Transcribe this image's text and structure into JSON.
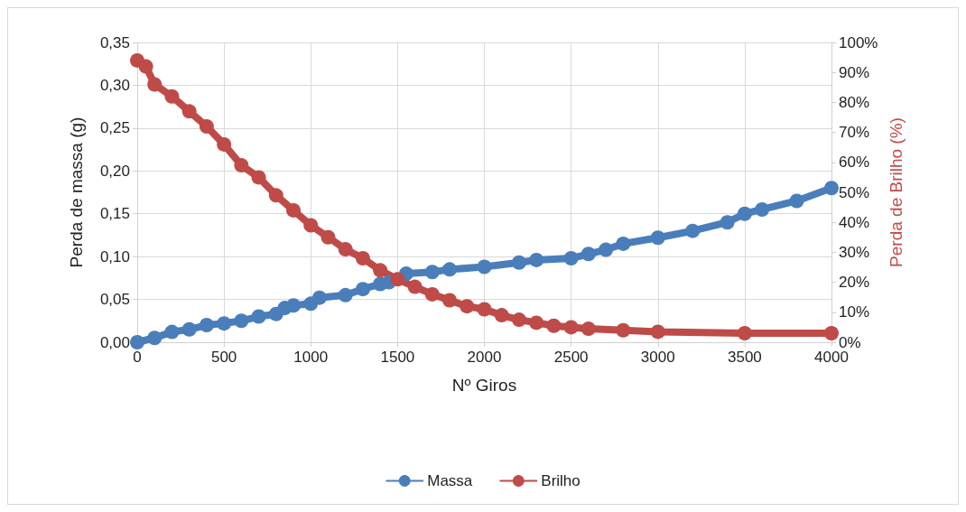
{
  "chart_data": {
    "type": "line",
    "xlabel": "Nº Giros",
    "ylabel": "Perda de massa (g)",
    "y2label": "Perda de Brilho (%)",
    "legend": "bottom",
    "grid": true,
    "marker": "circle",
    "line_style": "solid",
    "xlim": [
      0,
      4000
    ],
    "xticks": [
      0,
      500,
      1000,
      1500,
      2000,
      2500,
      3000,
      3500,
      4000
    ],
    "ylim": [
      0,
      0.35
    ],
    "yticks": [
      {
        "value": 0,
        "label": "0,00"
      },
      {
        "value": 0.05,
        "label": "0,05"
      },
      {
        "value": 0.1,
        "label": "0,10"
      },
      {
        "value": 0.15,
        "label": "0,15"
      },
      {
        "value": 0.2,
        "label": "0,20"
      },
      {
        "value": 0.25,
        "label": "0,25"
      },
      {
        "value": 0.3,
        "label": "0,30"
      },
      {
        "value": 0.35,
        "label": "0,35"
      }
    ],
    "y2lim": [
      0,
      100
    ],
    "y2ticks": [
      {
        "value": 0,
        "label": "0%"
      },
      {
        "value": 10,
        "label": "10%"
      },
      {
        "value": 20,
        "label": "20%"
      },
      {
        "value": 30,
        "label": "30%"
      },
      {
        "value": 40,
        "label": "40%"
      },
      {
        "value": 50,
        "label": "50%"
      },
      {
        "value": 60,
        "label": "60%"
      },
      {
        "value": 70,
        "label": "70%"
      },
      {
        "value": 80,
        "label": "80%"
      },
      {
        "value": 90,
        "label": "90%"
      },
      {
        "value": 100,
        "label": "100%"
      }
    ],
    "series": [
      {
        "name": "Massa",
        "color": "#4a7ebb",
        "x": [
          0,
          100,
          200,
          300,
          400,
          500,
          600,
          700,
          800,
          850,
          900,
          1000,
          1050,
          1200,
          1300,
          1400,
          1450,
          1550,
          1700,
          1800,
          2000,
          2200,
          2300,
          2500,
          2600,
          2700,
          2800,
          3000,
          3200,
          3400,
          3500,
          3600,
          3800,
          4000
        ],
        "values": [
          0,
          0.005,
          0.012,
          0.015,
          0.02,
          0.022,
          0.025,
          0.03,
          0.033,
          0.04,
          0.043,
          0.045,
          0.052,
          0.055,
          0.062,
          0.068,
          0.07,
          0.08,
          0.082,
          0.085,
          0.088,
          0.093,
          0.096,
          0.098,
          0.103,
          0.108,
          0.115,
          0.122,
          0.13,
          0.14,
          0.15,
          0.155,
          0.165,
          0.18
        ]
      },
      {
        "name": "Brilho",
        "color": "#be4b48",
        "axis": "y2",
        "x": [
          0,
          50,
          100,
          200,
          300,
          400,
          500,
          600,
          700,
          800,
          900,
          1000,
          1100,
          1200,
          1300,
          1400,
          1500,
          1600,
          1700,
          1800,
          1900,
          2000,
          2100,
          2200,
          2300,
          2400,
          2500,
          2600,
          2800,
          3000,
          3500,
          4000
        ],
        "values": [
          94,
          92,
          86,
          82,
          77,
          72,
          66,
          59,
          55,
          49,
          44,
          39,
          35,
          31,
          28,
          24,
          21,
          18.5,
          16,
          14,
          12,
          11,
          9,
          7.5,
          6.5,
          5.5,
          5,
          4.5,
          4,
          3.5,
          3,
          3
        ]
      }
    ]
  }
}
